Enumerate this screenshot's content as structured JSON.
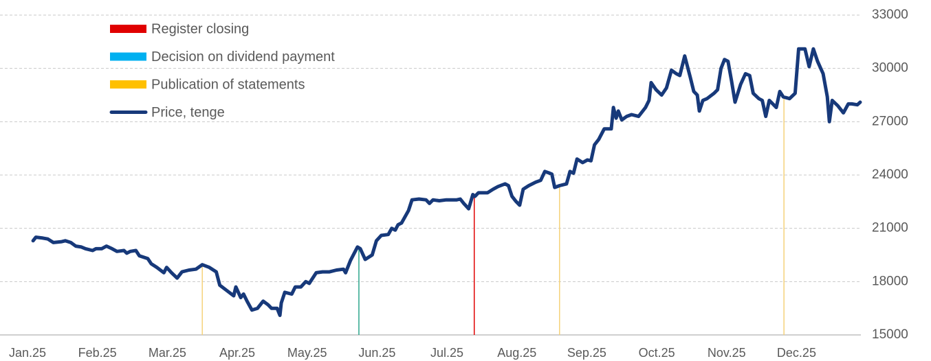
{
  "chart_data": {
    "type": "line",
    "xlim": [
      0,
      11.92
    ],
    "xticks": [
      {
        "value": 0,
        "label": "Jan.25"
      },
      {
        "value": 1,
        "label": "Feb.25"
      },
      {
        "value": 2,
        "label": "Mar.25"
      },
      {
        "value": 3,
        "label": "Apr.25"
      },
      {
        "value": 4,
        "label": "May.25"
      },
      {
        "value": 5,
        "label": "Jun.25"
      },
      {
        "value": 6,
        "label": "Jul.25"
      },
      {
        "value": 7,
        "label": "Aug.25"
      },
      {
        "value": 8,
        "label": "Sep.25"
      },
      {
        "value": 9,
        "label": "Oct.25"
      },
      {
        "value": 10,
        "label": "Nov.25"
      },
      {
        "value": 11,
        "label": "Dec.25"
      }
    ],
    "ylim": [
      15000,
      33000
    ],
    "yticks": [
      15000,
      18000,
      21000,
      24000,
      27000,
      30000,
      33000
    ],
    "grid": true,
    "legend": "top-left",
    "series": [
      {
        "name": "Register closing",
        "color": "#e00000",
        "mark": "vline",
        "x": [
          6.39
        ],
        "values": [
          22900
        ]
      },
      {
        "name": "Decision on dividend payment",
        "color": "#00b0f0",
        "line_color": "#2aa58a",
        "mark": "vline",
        "x": [
          4.74
        ],
        "values": [
          20000
        ]
      },
      {
        "name": "Publication of statements",
        "color": "#ffc000",
        "line_color": "#f5d27a",
        "mark": "vline",
        "x": [
          2.5,
          7.61,
          10.82
        ],
        "values": [
          18950,
          23400,
          28300
        ]
      },
      {
        "name": "Price, tenge",
        "color": "#17397a",
        "mark": "line",
        "x": [
          0.08,
          0.12,
          0.22,
          0.29,
          0.37,
          0.49,
          0.54,
          0.62,
          0.69,
          0.77,
          0.83,
          0.93,
          0.98,
          1.06,
          1.13,
          1.21,
          1.28,
          1.38,
          1.42,
          1.47,
          1.55,
          1.6,
          1.72,
          1.77,
          1.85,
          1.95,
          1.99,
          2.06,
          2.14,
          2.21,
          2.31,
          2.41,
          2.5,
          2.6,
          2.7,
          2.75,
          2.85,
          2.95,
          2.98,
          3.05,
          3.09,
          3.14,
          3.21,
          3.29,
          3.37,
          3.44,
          3.49,
          3.57,
          3.61,
          3.63,
          3.68,
          3.78,
          3.83,
          3.91,
          3.98,
          4.03,
          4.13,
          4.22,
          4.32,
          4.42,
          4.52,
          4.55,
          4.62,
          4.72,
          4.76,
          4.83,
          4.93,
          4.99,
          5.06,
          5.16,
          5.21,
          5.26,
          5.3,
          5.35,
          5.45,
          5.5,
          5.6,
          5.7,
          5.75,
          5.8,
          5.89,
          5.99,
          6.14,
          6.19,
          6.24,
          6.31,
          6.37,
          6.4,
          6.45,
          6.53,
          6.58,
          6.66,
          6.73,
          6.83,
          6.88,
          6.93,
          6.99,
          7.04,
          7.09,
          7.17,
          7.27,
          7.34,
          7.4,
          7.47,
          7.5,
          7.54,
          7.61,
          7.71,
          7.76,
          7.81,
          7.86,
          7.94,
          8.01,
          8.06,
          8.11,
          8.17,
          8.25,
          8.35,
          8.38,
          8.42,
          8.45,
          8.5,
          8.57,
          8.64,
          8.74,
          8.84,
          8.89,
          8.92,
          8.99,
          9.07,
          9.14,
          9.21,
          9.28,
          9.33,
          9.4,
          9.48,
          9.53,
          9.58,
          9.61,
          9.66,
          9.72,
          9.82,
          9.87,
          9.92,
          9.97,
          10.02,
          10.07,
          10.12,
          10.2,
          10.27,
          10.33,
          10.38,
          10.46,
          10.51,
          10.56,
          10.61,
          10.66,
          10.71,
          10.76,
          10.81,
          10.9,
          10.98,
          11.03,
          11.12,
          11.18,
          11.24,
          11.3,
          11.38,
          11.44,
          11.47,
          11.51,
          11.59,
          11.67,
          11.74,
          11.79,
          11.87,
          11.91
        ],
        "values": [
          20300,
          20500,
          20450,
          20400,
          20200,
          20250,
          20300,
          20200,
          20000,
          19950,
          19850,
          19750,
          19850,
          19850,
          20000,
          19850,
          19700,
          19750,
          19600,
          19700,
          19750,
          19450,
          19300,
          19000,
          18800,
          18500,
          18800,
          18500,
          18200,
          18550,
          18650,
          18700,
          18950,
          18800,
          18550,
          17800,
          17500,
          17200,
          17700,
          17100,
          17300,
          16900,
          16400,
          16500,
          16900,
          16700,
          16500,
          16500,
          16100,
          16800,
          17400,
          17300,
          17700,
          17700,
          18000,
          17900,
          18500,
          18550,
          18550,
          18650,
          18700,
          18500,
          19200,
          19950,
          19850,
          19250,
          19500,
          20300,
          20600,
          20650,
          21000,
          20900,
          21200,
          21300,
          22000,
          22600,
          22650,
          22600,
          22400,
          22600,
          22550,
          22600,
          22600,
          22650,
          22400,
          22100,
          22900,
          22800,
          23000,
          23000,
          23000,
          23200,
          23350,
          23500,
          23400,
          22800,
          22500,
          22300,
          23200,
          23400,
          23600,
          23700,
          24200,
          24100,
          24050,
          23300,
          23400,
          23500,
          24200,
          24100,
          24900,
          24700,
          24850,
          24800,
          25700,
          26000,
          26600,
          26600,
          27800,
          27200,
          27600,
          27100,
          27300,
          27400,
          27300,
          27800,
          28200,
          29200,
          28800,
          28500,
          28900,
          29900,
          29700,
          29600,
          30700,
          29500,
          28700,
          28500,
          27600,
          28200,
          28300,
          28600,
          28800,
          30000,
          30500,
          30400,
          29300,
          28100,
          29100,
          29700,
          29600,
          28600,
          28300,
          28200,
          27300,
          28200,
          28000,
          27800,
          28700,
          28400,
          28300,
          28600,
          31100,
          31100,
          30100,
          31100,
          30400,
          29700,
          28400,
          27000,
          28200,
          27900,
          27500,
          28000,
          28000,
          27950,
          28100
        ]
      }
    ]
  }
}
